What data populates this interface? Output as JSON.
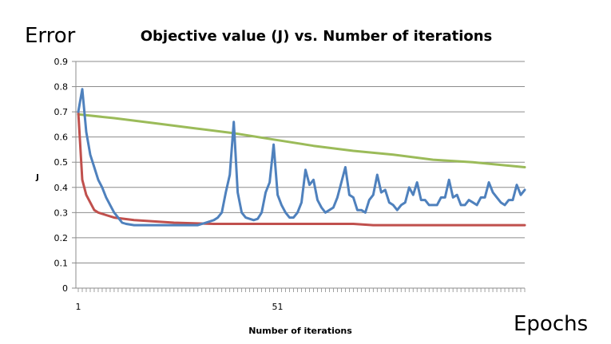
{
  "overlay": {
    "error_label": "Error",
    "epochs_label": "Epochs"
  },
  "chart_data": {
    "type": "line",
    "title": "Objective value (J) vs. Number of iterations",
    "xlabel": "Number of iterations",
    "ylabel": "J",
    "xlim": [
      1,
      113
    ],
    "ylim": [
      0,
      0.9
    ],
    "y_ticks": [
      0,
      0.1,
      0.2,
      0.3,
      0.4,
      0.5,
      0.6,
      0.7,
      0.8,
      0.9
    ],
    "x_tick_labels": [
      "1",
      "51"
    ],
    "grid": "horizontal",
    "legend": "none",
    "series": [
      {
        "color": "#9bbb59",
        "points": [
          [
            1,
            0.69
          ],
          [
            10,
            0.675
          ],
          [
            20,
            0.655
          ],
          [
            30,
            0.635
          ],
          [
            40,
            0.615
          ],
          [
            50,
            0.59
          ],
          [
            60,
            0.565
          ],
          [
            70,
            0.545
          ],
          [
            80,
            0.53
          ],
          [
            90,
            0.51
          ],
          [
            100,
            0.5
          ],
          [
            113,
            0.48
          ]
        ]
      },
      {
        "color": "#c0504d",
        "points": [
          [
            1,
            0.7
          ],
          [
            2,
            0.43
          ],
          [
            3,
            0.37
          ],
          [
            4,
            0.34
          ],
          [
            5,
            0.31
          ],
          [
            6,
            0.3
          ],
          [
            8,
            0.29
          ],
          [
            10,
            0.28
          ],
          [
            15,
            0.27
          ],
          [
            20,
            0.265
          ],
          [
            25,
            0.26
          ],
          [
            35,
            0.255
          ],
          [
            50,
            0.255
          ],
          [
            70,
            0.255
          ],
          [
            75,
            0.25
          ],
          [
            113,
            0.25
          ]
        ]
      },
      {
        "color": "#4f81bd",
        "points": [
          [
            1,
            0.7
          ],
          [
            2,
            0.79
          ],
          [
            3,
            0.62
          ],
          [
            4,
            0.53
          ],
          [
            5,
            0.48
          ],
          [
            6,
            0.43
          ],
          [
            7,
            0.4
          ],
          [
            8,
            0.36
          ],
          [
            9,
            0.33
          ],
          [
            10,
            0.3
          ],
          [
            11,
            0.28
          ],
          [
            12,
            0.26
          ],
          [
            13,
            0.255
          ],
          [
            15,
            0.25
          ],
          [
            20,
            0.25
          ],
          [
            25,
            0.25
          ],
          [
            31,
            0.25
          ],
          [
            33,
            0.26
          ],
          [
            35,
            0.27
          ],
          [
            36,
            0.28
          ],
          [
            37,
            0.3
          ],
          [
            38,
            0.38
          ],
          [
            39,
            0.45
          ],
          [
            40,
            0.66
          ],
          [
            41,
            0.38
          ],
          [
            42,
            0.3
          ],
          [
            43,
            0.28
          ],
          [
            44,
            0.275
          ],
          [
            45,
            0.27
          ],
          [
            46,
            0.275
          ],
          [
            47,
            0.3
          ],
          [
            48,
            0.38
          ],
          [
            49,
            0.42
          ],
          [
            50,
            0.57
          ],
          [
            51,
            0.37
          ],
          [
            52,
            0.33
          ],
          [
            53,
            0.3
          ],
          [
            54,
            0.28
          ],
          [
            55,
            0.28
          ],
          [
            56,
            0.3
          ],
          [
            57,
            0.34
          ],
          [
            58,
            0.47
          ],
          [
            59,
            0.41
          ],
          [
            60,
            0.43
          ],
          [
            61,
            0.35
          ],
          [
            62,
            0.32
          ],
          [
            63,
            0.3
          ],
          [
            64,
            0.31
          ],
          [
            65,
            0.32
          ],
          [
            66,
            0.36
          ],
          [
            67,
            0.42
          ],
          [
            68,
            0.48
          ],
          [
            69,
            0.37
          ],
          [
            70,
            0.36
          ],
          [
            71,
            0.31
          ],
          [
            72,
            0.31
          ],
          [
            73,
            0.3
          ],
          [
            74,
            0.35
          ],
          [
            75,
            0.37
          ],
          [
            76,
            0.45
          ],
          [
            77,
            0.38
          ],
          [
            78,
            0.39
          ],
          [
            79,
            0.34
          ],
          [
            80,
            0.33
          ],
          [
            81,
            0.31
          ],
          [
            82,
            0.33
          ],
          [
            83,
            0.34
          ],
          [
            84,
            0.4
          ],
          [
            85,
            0.37
          ],
          [
            86,
            0.42
          ],
          [
            87,
            0.35
          ],
          [
            88,
            0.35
          ],
          [
            89,
            0.33
          ],
          [
            90,
            0.33
          ],
          [
            91,
            0.33
          ],
          [
            92,
            0.36
          ],
          [
            93,
            0.36
          ],
          [
            94,
            0.43
          ],
          [
            95,
            0.36
          ],
          [
            96,
            0.37
          ],
          [
            97,
            0.33
          ],
          [
            98,
            0.33
          ],
          [
            99,
            0.35
          ],
          [
            100,
            0.34
          ],
          [
            101,
            0.33
          ],
          [
            102,
            0.36
          ],
          [
            103,
            0.36
          ],
          [
            104,
            0.42
          ],
          [
            105,
            0.38
          ],
          [
            106,
            0.36
          ],
          [
            107,
            0.34
          ],
          [
            108,
            0.33
          ],
          [
            109,
            0.35
          ],
          [
            110,
            0.35
          ],
          [
            111,
            0.41
          ],
          [
            112,
            0.37
          ],
          [
            113,
            0.39
          ]
        ]
      }
    ]
  }
}
